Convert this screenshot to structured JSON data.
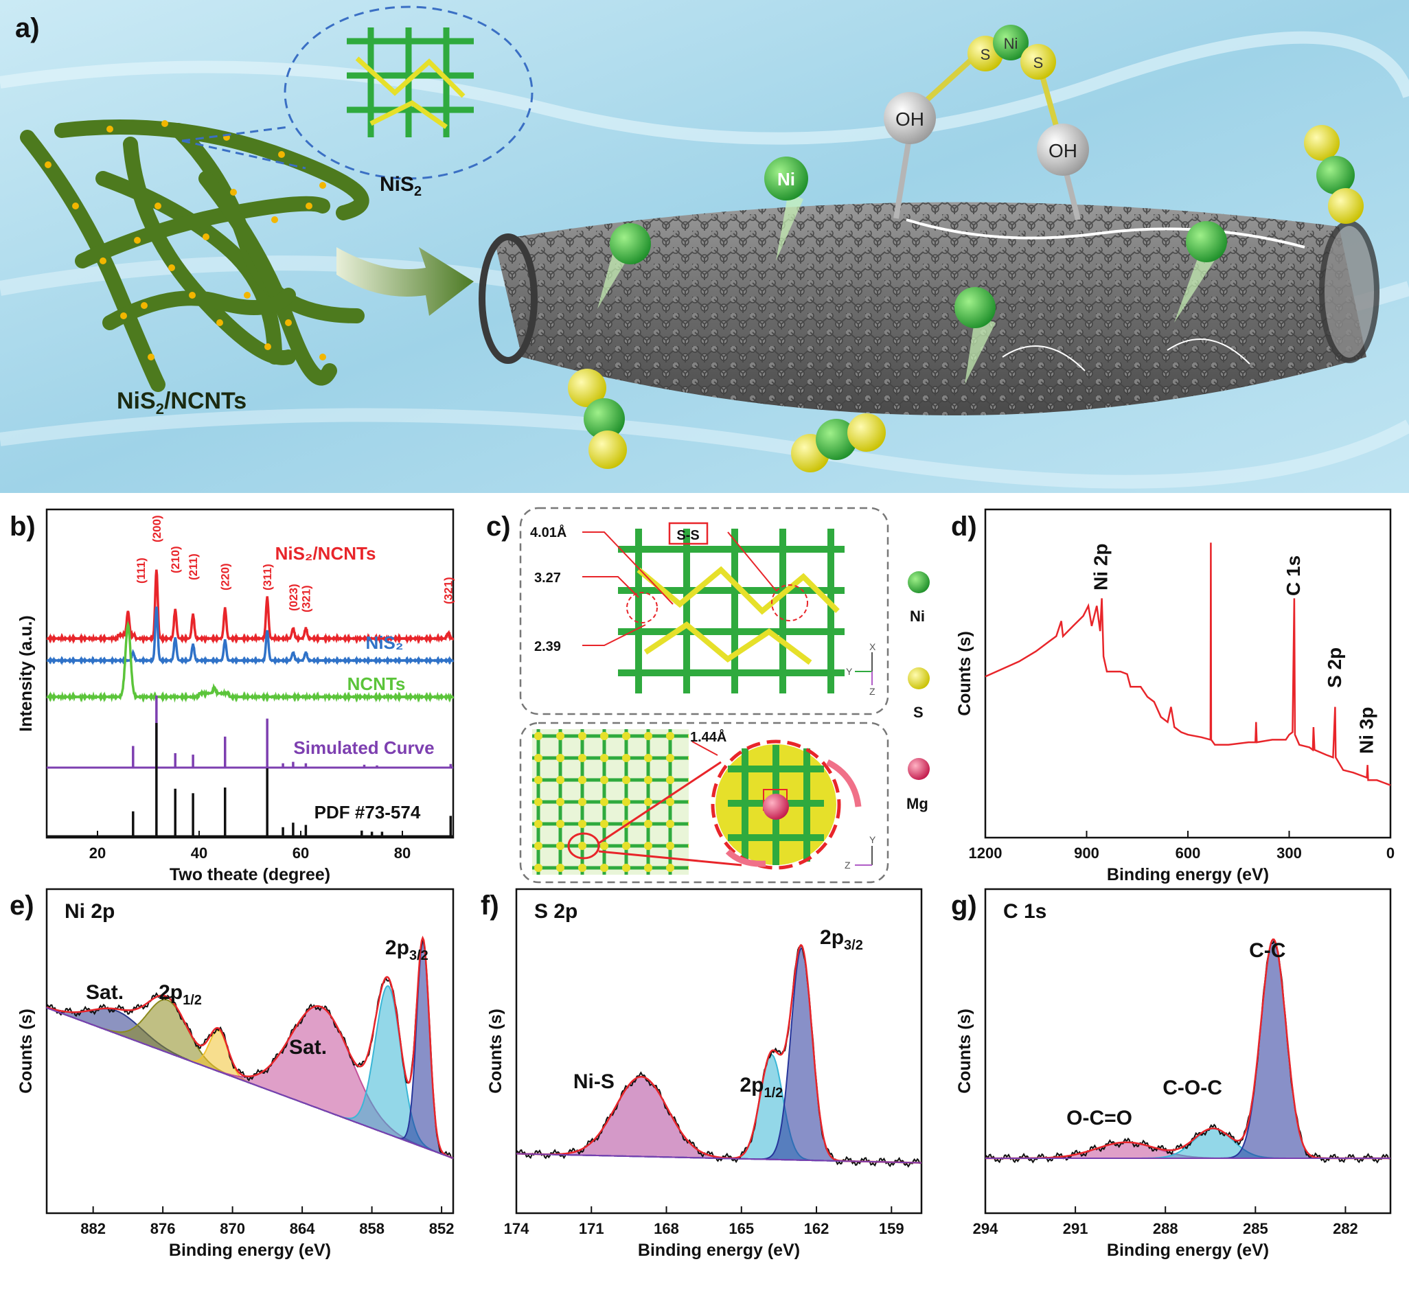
{
  "panels": {
    "a": {
      "label": "a)",
      "nanotube_network_label": "NiS",
      "nanotube_network_sub": "2",
      "nanotube_network_label_tail": "/NCNTs",
      "inset_label": "NiS",
      "inset_sub": "2",
      "atom_ni": "Ni",
      "atom_s": "S",
      "atom_oh": "OH"
    },
    "b": {
      "label": "b)"
    },
    "c": {
      "label": "c)",
      "bond_label": "S-S",
      "dist_1": "4.01Å",
      "dist_2": "3.27",
      "dist_3": "2.39",
      "dist_4": "1.44Å",
      "legend": [
        {
          "name": "Ni",
          "color": "#2faa3e"
        },
        {
          "name": "S",
          "color": "#e6e02a"
        },
        {
          "name": "Mg",
          "color": "#e0587a"
        }
      ],
      "axes_top": [
        "X",
        "Y",
        "Z"
      ],
      "axes_bottom": [
        "Y",
        "Z"
      ]
    },
    "d": {
      "label": "d)"
    },
    "e": {
      "label": "e)"
    },
    "f": {
      "label": "f)"
    },
    "g": {
      "label": "g)"
    }
  },
  "chart_data": [
    {
      "id": "b",
      "type": "line",
      "xlabel": "Two theate (degree)",
      "ylabel": "Intensity (a.u.)",
      "xlim": [
        10,
        90
      ],
      "xticks": [
        20,
        40,
        60,
        80
      ],
      "series": [
        {
          "name": "NiS₂/NCNTs",
          "color": "#e8252a",
          "peaks": [
            {
              "x": 26.0,
              "h": 0.35
            },
            {
              "x": 31.6,
              "h": 1.0
            },
            {
              "x": 35.3,
              "h": 0.42
            },
            {
              "x": 38.8,
              "h": 0.35
            },
            {
              "x": 45.1,
              "h": 0.44
            },
            {
              "x": 53.4,
              "h": 0.6
            },
            {
              "x": 58.5,
              "h": 0.15
            },
            {
              "x": 61.0,
              "h": 0.15
            },
            {
              "x": 89.0,
              "h": 0.08
            }
          ]
        },
        {
          "name": "NiS₂",
          "color": "#2f72c8",
          "peaks": [
            {
              "x": 27.0,
              "h": 0.15
            },
            {
              "x": 31.6,
              "h": 1.0
            },
            {
              "x": 35.3,
              "h": 0.42
            },
            {
              "x": 38.8,
              "h": 0.3
            },
            {
              "x": 45.1,
              "h": 0.38
            },
            {
              "x": 53.4,
              "h": 0.55
            },
            {
              "x": 58.5,
              "h": 0.15
            },
            {
              "x": 61.0,
              "h": 0.15
            }
          ]
        },
        {
          "name": "NCNTs",
          "color": "#5bc43a",
          "peaks": [
            {
              "x": 26.0,
              "h": 1.0
            },
            {
              "x": 43.0,
              "h": 0.08
            }
          ]
        },
        {
          "name": "Simulated Curve",
          "color": "#7d3fb0",
          "sticks": [
            {
              "x": 27.0,
              "h": 0.3
            },
            {
              "x": 31.6,
              "h": 1.0
            },
            {
              "x": 35.3,
              "h": 0.2
            },
            {
              "x": 38.8,
              "h": 0.18
            },
            {
              "x": 45.1,
              "h": 0.43
            },
            {
              "x": 53.4,
              "h": 0.68
            },
            {
              "x": 56.5,
              "h": 0.06
            },
            {
              "x": 58.5,
              "h": 0.08
            },
            {
              "x": 61.0,
              "h": 0.06
            },
            {
              "x": 72.5,
              "h": 0.04
            },
            {
              "x": 75.0,
              "h": 0.03
            },
            {
              "x": 89.5,
              "h": 0.05
            }
          ]
        },
        {
          "name": "PDF #73-574",
          "color": "#111111",
          "sticks": [
            {
              "x": 27.0,
              "h": 0.22
            },
            {
              "x": 31.6,
              "h": 1.0
            },
            {
              "x": 35.3,
              "h": 0.42
            },
            {
              "x": 38.8,
              "h": 0.38
            },
            {
              "x": 45.1,
              "h": 0.43
            },
            {
              "x": 53.4,
              "h": 0.6
            },
            {
              "x": 56.5,
              "h": 0.08
            },
            {
              "x": 58.5,
              "h": 0.12
            },
            {
              "x": 61.0,
              "h": 0.1
            },
            {
              "x": 72.0,
              "h": 0.05
            },
            {
              "x": 74.0,
              "h": 0.04
            },
            {
              "x": 76.0,
              "h": 0.04
            },
            {
              "x": 89.5,
              "h": 0.18
            }
          ]
        }
      ],
      "hkl_labels": [
        {
          "x": 28.5,
          "text": "(111)"
        },
        {
          "x": 31.6,
          "text": "(200)"
        },
        {
          "x": 35.3,
          "text": "(210)"
        },
        {
          "x": 38.8,
          "text": "(211)"
        },
        {
          "x": 45.1,
          "text": "(220)"
        },
        {
          "x": 53.4,
          "text": "(311)"
        },
        {
          "x": 58.5,
          "text": "(023)"
        },
        {
          "x": 61.0,
          "text": "(321)"
        },
        {
          "x": 89.0,
          "text": "(321)"
        }
      ]
    },
    {
      "id": "d",
      "type": "line",
      "xlabel": "Binding energy (eV)",
      "ylabel": "Counts (s)",
      "xlim": [
        1200,
        0
      ],
      "xticks": [
        1200,
        900,
        600,
        300,
        0
      ],
      "color": "#e8252a",
      "annotations": [
        {
          "x": 855,
          "text": "Ni 2p"
        },
        {
          "x": 285,
          "text": "C 1s"
        },
        {
          "x": 163,
          "text": "S 2p"
        },
        {
          "x": 68,
          "text": "Ni 3p"
        }
      ],
      "points": [
        [
          1200,
          0.42
        ],
        [
          1150,
          0.45
        ],
        [
          1100,
          0.48
        ],
        [
          1050,
          0.52
        ],
        [
          1010,
          0.56
        ],
        [
          990,
          0.58
        ],
        [
          975,
          0.64
        ],
        [
          970,
          0.58
        ],
        [
          940,
          0.62
        ],
        [
          910,
          0.66
        ],
        [
          895,
          0.7
        ],
        [
          885,
          0.62
        ],
        [
          870,
          0.7
        ],
        [
          860,
          0.6
        ],
        [
          855,
          0.73
        ],
        [
          850,
          0.5
        ],
        [
          840,
          0.44
        ],
        [
          800,
          0.44
        ],
        [
          780,
          0.43
        ],
        [
          770,
          0.38
        ],
        [
          740,
          0.38
        ],
        [
          720,
          0.34
        ],
        [
          700,
          0.32
        ],
        [
          680,
          0.26
        ],
        [
          660,
          0.24
        ],
        [
          650,
          0.3
        ],
        [
          640,
          0.22
        ],
        [
          620,
          0.2
        ],
        [
          600,
          0.19
        ],
        [
          560,
          0.18
        ],
        [
          533,
          0.17
        ],
        [
          532,
          0.95
        ],
        [
          531,
          0.17
        ],
        [
          520,
          0.15
        ],
        [
          480,
          0.15
        ],
        [
          420,
          0.16
        ],
        [
          400,
          0.16
        ],
        [
          398,
          0.24
        ],
        [
          396,
          0.16
        ],
        [
          350,
          0.17
        ],
        [
          310,
          0.17
        ],
        [
          300,
          0.19
        ],
        [
          290,
          0.2
        ],
        [
          285,
          0.73
        ],
        [
          283,
          0.19
        ],
        [
          270,
          0.15
        ],
        [
          240,
          0.14
        ],
        [
          230,
          0.13
        ],
        [
          228,
          0.22
        ],
        [
          225,
          0.13
        ],
        [
          190,
          0.11
        ],
        [
          170,
          0.1
        ],
        [
          164,
          0.3
        ],
        [
          162,
          0.1
        ],
        [
          140,
          0.05
        ],
        [
          110,
          0.04
        ],
        [
          90,
          0.03
        ],
        [
          70,
          0.02
        ],
        [
          68,
          0.07
        ],
        [
          66,
          0.01
        ],
        [
          40,
          0.01
        ],
        [
          20,
          0.0
        ],
        [
          0,
          -0.01
        ]
      ]
    },
    {
      "id": "e",
      "type": "line",
      "title": "Ni 2p",
      "xlabel": "Binding energy (eV)",
      "ylabel": "Counts (s)",
      "xlim": [
        886,
        851
      ],
      "xticks": [
        882,
        876,
        870,
        864,
        858,
        852
      ],
      "annotations": [
        {
          "x": 881,
          "text": "Sat.",
          "sub": ""
        },
        {
          "x": 874.5,
          "text": "2p",
          "sub": "1/2"
        },
        {
          "x": 863.5,
          "text": "Sat.",
          "sub": ""
        },
        {
          "x": 855,
          "text": "2p",
          "sub": "3/2"
        }
      ],
      "peaks": [
        {
          "center": 880.0,
          "height": 0.1,
          "width": 2.2,
          "color": "#2d3b8c"
        },
        {
          "center": 875.6,
          "height": 0.23,
          "width": 1.7,
          "color": "#8c8a1e"
        },
        {
          "center": 871.2,
          "height": 0.18,
          "width": 0.8,
          "color": "#f1c232"
        },
        {
          "center": 862.4,
          "height": 0.45,
          "width": 2.6,
          "color": "#c4509a"
        },
        {
          "center": 856.6,
          "height": 0.65,
          "width": 1.1,
          "color": "#3ab6d6"
        },
        {
          "center": 853.6,
          "height": 0.9,
          "width": 0.55,
          "color": "#26359a"
        }
      ],
      "baseline": [
        [
          886,
          0.66
        ],
        [
          851,
          0.0
        ]
      ]
    },
    {
      "id": "f",
      "type": "line",
      "title": "S 2p",
      "xlabel": "Binding energy (eV)",
      "ylabel": "Counts (s)",
      "xlim": [
        174,
        157.8
      ],
      "xticks": [
        174,
        171,
        168,
        165,
        162,
        159
      ],
      "annotations": [
        {
          "x": 170.9,
          "text": "Ni-S",
          "sub": ""
        },
        {
          "x": 164.2,
          "text": "2p",
          "sub": "1/2"
        },
        {
          "x": 161.0,
          "text": "2p",
          "sub": "3/2"
        }
      ],
      "peaks": [
        {
          "center": 169.0,
          "height": 0.35,
          "width": 1.05,
          "color": "#b0459a"
        },
        {
          "center": 163.8,
          "height": 0.46,
          "width": 0.45,
          "color": "#3ab6d6"
        },
        {
          "center": 162.6,
          "height": 0.93,
          "width": 0.42,
          "color": "#26359a"
        }
      ],
      "baseline": [
        [
          174,
          0.02
        ],
        [
          157.8,
          -0.02
        ]
      ]
    },
    {
      "id": "g",
      "type": "line",
      "title": "C 1s",
      "xlabel": "Binding energy (eV)",
      "ylabel": "Counts (s)",
      "xlim": [
        294,
        280.5
      ],
      "xticks": [
        294,
        291,
        288,
        285,
        282
      ],
      "annotations": [
        {
          "x": 290.2,
          "text": "O-C=O",
          "sub": ""
        },
        {
          "x": 287.1,
          "text": "C-O-C",
          "sub": ""
        },
        {
          "x": 284.6,
          "text": "C-C",
          "sub": ""
        }
      ],
      "peaks": [
        {
          "center": 289.3,
          "height": 0.07,
          "width": 1.0,
          "color": "#c4509a"
        },
        {
          "center": 286.4,
          "height": 0.13,
          "width": 0.65,
          "color": "#3ab6d6"
        },
        {
          "center": 284.4,
          "height": 0.96,
          "width": 0.42,
          "color": "#26359a"
        }
      ],
      "baseline": [
        [
          294,
          0.0
        ],
        [
          280.5,
          0.0
        ]
      ]
    }
  ],
  "colors": {
    "envelope": "#e8252a",
    "raw": "#111111",
    "sky": "#9fd6ea",
    "tube": "#7b7b7b",
    "ni_green": "#2faa3e",
    "s_yellow": "#e6e02a"
  }
}
